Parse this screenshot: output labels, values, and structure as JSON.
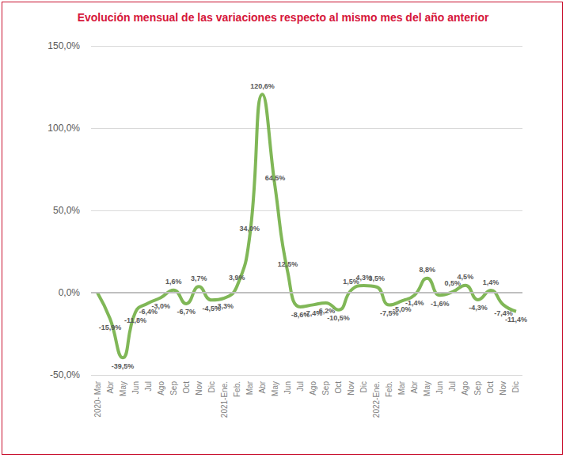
{
  "chart_data": {
    "type": "line",
    "title": "Evolución mensual de las variaciones respecto al mismo mes del año anterior",
    "categories": [
      "2020- Mar",
      "Abr",
      "May",
      "Jun",
      "Jul",
      "Ago",
      "Sep",
      "Oct",
      "Nov",
      "Dic",
      "2021-Ene.",
      "Feb.",
      "Mar",
      "Abr",
      "May",
      "Jun",
      "Jul",
      "Ago",
      "Sep",
      "Oct",
      "Nov",
      "Dic",
      "2022-Ene.",
      "Feb.",
      "Mar",
      "Abr",
      "May",
      "Jun",
      "Jul",
      "Ago",
      "Sep",
      "Oct",
      "Nov",
      "Dic"
    ],
    "values": [
      0,
      -15.9,
      -39.5,
      -11.8,
      -6.4,
      -3.0,
      1.6,
      -6.7,
      3.7,
      -4.5,
      -3.3,
      3.9,
      34.0,
      120.6,
      64.5,
      12.5,
      -8.6,
      -7.4,
      -6.2,
      -10.5,
      1.5,
      4.3,
      3.5,
      -7.5,
      -5.0,
      -1.4,
      8.8,
      -1.6,
      0.5,
      4.5,
      -4.3,
      1.4,
      -7.4,
      -11.4
    ],
    "value_labels": [
      null,
      "-15,9%",
      "-39,5%",
      "-11,8%",
      "-6,4%",
      "-3,0%",
      "1,6%",
      "-6,7%",
      "3,7%",
      "-4,5%",
      "-3,3%",
      "3,9%",
      "34,0%",
      "120,6%",
      "64,5%",
      "12,5%",
      "-8,6%",
      "-7,4%",
      "-6,2%",
      "-10,5%",
      "1,5%",
      "4,3%",
      "3,5%",
      "-7,5%",
      "-5,0%",
      "-1,4%",
      "8,8%",
      "-1,6%",
      "0,5%",
      "4,5%",
      "-4,3%",
      "1,4%",
      "-7,4%",
      "-11,4%"
    ],
    "color": "#6aaa3a",
    "ylim": [
      -50,
      150
    ],
    "yticks": [
      {
        "value": -50,
        "label": "-50,0%"
      },
      {
        "value": 0,
        "label": "0,0%"
      },
      {
        "value": 50,
        "label": "50,0%"
      },
      {
        "value": 100,
        "label": "100,0%"
      },
      {
        "value": 150,
        "label": "150,0%"
      }
    ],
    "grid": true,
    "data_labels": true,
    "marker": "none",
    "line_style": "solid"
  }
}
